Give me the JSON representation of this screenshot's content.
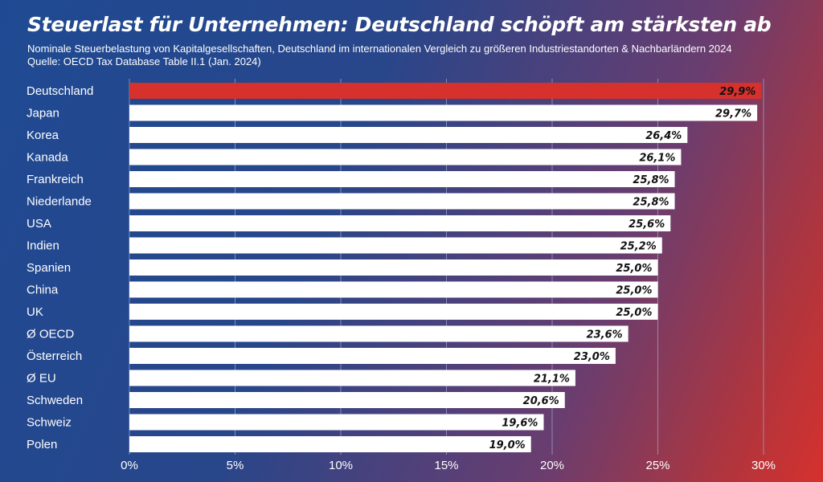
{
  "header": {
    "title": "Steuerlast für Unternehmen: Deutschland schöpft am stärksten ab",
    "subtitle": "Nominale Steuerbelastung von Kapitalgesellschaften, Deutschland im internationalen Vergleich zu größeren Industriestandorten & Nachbarländern 2024",
    "source": "Quelle: OECD Tax Database Table II.1 (Jan. 2024)"
  },
  "colors": {
    "highlight": "#d6312d",
    "bar": "#ffffff",
    "grid": "#9aa6c4"
  },
  "chart_data": {
    "type": "bar",
    "orientation": "horizontal",
    "categories": [
      "Deutschland",
      "Japan",
      "Korea",
      "Kanada",
      "Frankreich",
      "Niederlande",
      "USA",
      "Indien",
      "Spanien",
      "China",
      "UK",
      "Ø OECD",
      "Österreich",
      "Ø EU",
      "Schweden",
      "Schweiz",
      "Polen"
    ],
    "values": [
      29.9,
      29.7,
      26.4,
      26.1,
      25.8,
      25.8,
      25.6,
      25.2,
      25.0,
      25.0,
      25.0,
      23.6,
      23.0,
      21.1,
      20.6,
      19.6,
      19.0
    ],
    "value_labels": [
      "29,9%",
      "29,7%",
      "26,4%",
      "26,1%",
      "25,8%",
      "25,8%",
      "25,6%",
      "25,2%",
      "25,0%",
      "25,0%",
      "25,0%",
      "23,6%",
      "23,0%",
      "21,1%",
      "20,6%",
      "19,6%",
      "19,0%"
    ],
    "highlight_category": "Deutschland",
    "xlim": [
      0,
      30
    ],
    "xticks": [
      0,
      5,
      10,
      15,
      20,
      25,
      30
    ],
    "xtick_labels": [
      "0%",
      "5%",
      "10%",
      "15%",
      "20%",
      "25%",
      "30%"
    ],
    "grid": true
  }
}
